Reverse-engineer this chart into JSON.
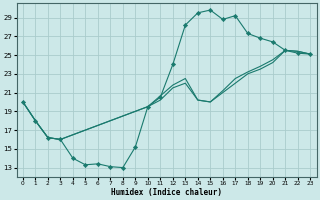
{
  "title": "",
  "xlabel": "Humidex (Indice chaleur)",
  "background_color": "#cce8e8",
  "grid_color": "#aacccc",
  "line_color": "#1a7a6e",
  "xlim": [
    -0.5,
    23.5
  ],
  "ylim": [
    12.0,
    30.5
  ],
  "yticks": [
    13,
    15,
    17,
    19,
    21,
    23,
    25,
    27,
    29
  ],
  "xticks": [
    0,
    1,
    2,
    3,
    4,
    5,
    6,
    7,
    8,
    9,
    10,
    11,
    12,
    13,
    14,
    15,
    16,
    17,
    18,
    19,
    20,
    21,
    22,
    23
  ],
  "main_x": [
    0,
    1,
    2,
    3,
    4,
    5,
    6,
    7,
    8,
    9,
    10,
    11,
    12,
    13,
    14,
    15,
    16,
    17,
    18,
    19,
    20,
    21,
    22,
    23
  ],
  "main_y": [
    20.0,
    18.0,
    16.2,
    16.0,
    14.0,
    13.3,
    13.4,
    13.1,
    13.0,
    15.2,
    19.5,
    20.5,
    24.0,
    28.2,
    29.5,
    29.8,
    28.8,
    29.2,
    27.3,
    26.8,
    26.4,
    25.5,
    25.2,
    25.1
  ],
  "trend1_x": [
    0,
    1,
    2,
    3,
    10,
    11,
    12,
    13,
    14,
    15,
    16,
    17,
    18,
    19,
    20,
    21,
    22,
    23
  ],
  "trend1_y": [
    20.0,
    18.0,
    16.2,
    16.0,
    19.5,
    20.2,
    21.5,
    22.0,
    20.2,
    20.0,
    21.0,
    22.0,
    23.0,
    23.5,
    24.2,
    25.5,
    25.4,
    25.1
  ],
  "trend2_x": [
    0,
    1,
    2,
    3,
    10,
    12,
    13,
    14,
    15,
    16,
    17,
    18,
    19,
    20,
    21,
    22,
    23
  ],
  "trend2_y": [
    20.0,
    18.0,
    16.2,
    16.0,
    19.5,
    21.8,
    22.5,
    20.2,
    20.0,
    21.2,
    22.5,
    23.2,
    23.8,
    24.5,
    25.5,
    25.4,
    25.1
  ]
}
